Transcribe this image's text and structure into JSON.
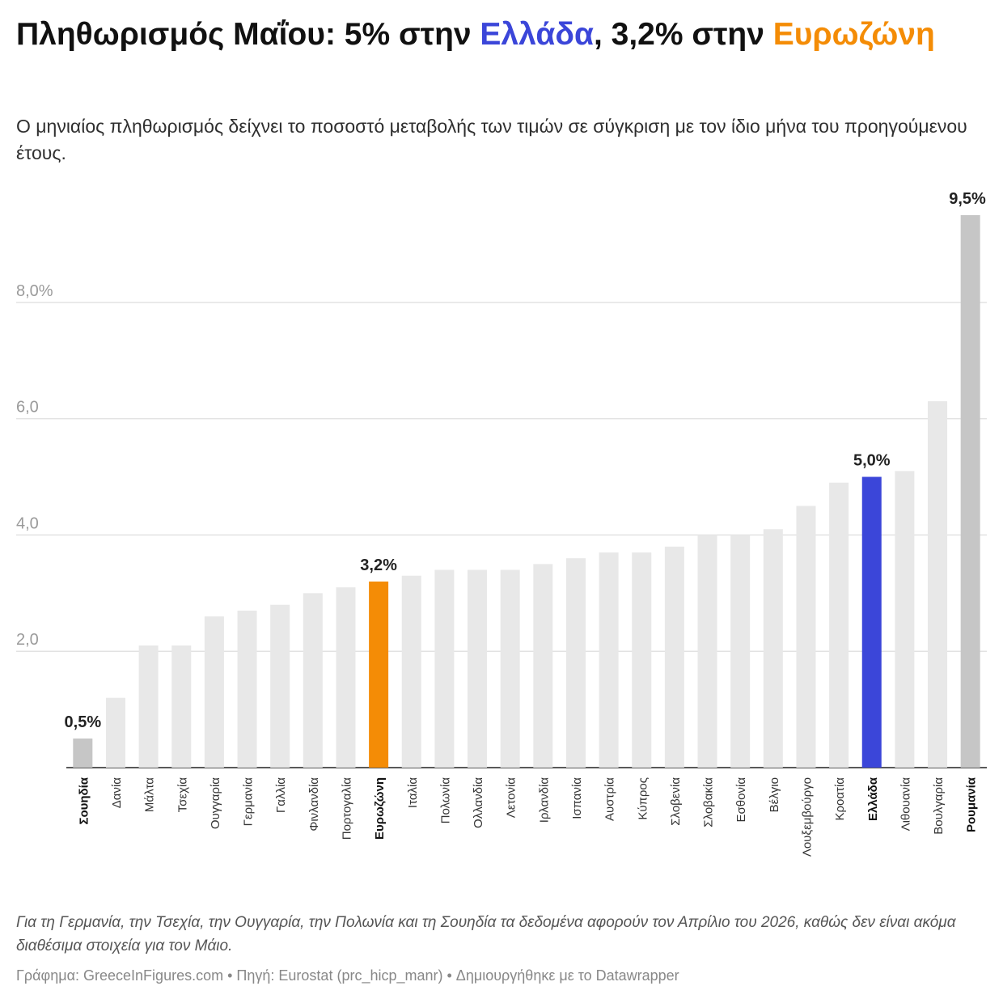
{
  "header": {
    "title_part1": "Πληθωρισμός Μαΐου: 5% στην ",
    "title_greece": "Ελλάδα",
    "title_part2": ", 3,2% στην ",
    "title_eurozone": "Ευρωζώνη",
    "subtitle": "Ο μηνιαίος πληθωρισμός δείχνει το ποσοστό μεταβολής των τιμών σε σύγκριση με τον ίδιο μήνα του προηγούμενου έτους."
  },
  "chart_data": {
    "type": "bar",
    "categories": [
      "Σουηδία",
      "Δανία",
      "Μάλτα",
      "Τσεχία",
      "Ουγγαρία",
      "Γερμανία",
      "Γαλλία",
      "Φινλανδία",
      "Πορτογαλία",
      "Ευρωζώνη",
      "Ιταλία",
      "Πολωνία",
      "Ολλανδία",
      "Λετονία",
      "Ιρλανδία",
      "Ισπανία",
      "Αυστρία",
      "Κύπρος",
      "Σλοβενία",
      "Σλοβακία",
      "Εσθονία",
      "Βέλγιο",
      "Λουξεμβούργο",
      "Κροατία",
      "Ελλάδα",
      "Λιθουανία",
      "Βουλγαρία",
      "Ρουμανία"
    ],
    "values": [
      0.5,
      1.2,
      2.1,
      2.1,
      2.6,
      2.7,
      2.8,
      3.0,
      3.1,
      3.2,
      3.3,
      3.4,
      3.4,
      3.4,
      3.5,
      3.6,
      3.7,
      3.7,
      3.8,
      4.0,
      4.0,
      4.1,
      4.5,
      4.9,
      5.0,
      5.1,
      6.3,
      9.5
    ],
    "ylim": [
      0,
      9.5
    ],
    "yticks": [
      {
        "value": 2,
        "label": "2,0"
      },
      {
        "value": 4,
        "label": "4,0"
      },
      {
        "value": 6,
        "label": "6,0"
      },
      {
        "value": 8,
        "label": "8,0%"
      }
    ],
    "grid": true,
    "colors": {
      "default": "#e8e8e8",
      "extreme": "#c6c6c6",
      "eurozone": "#f48c06",
      "greece": "#3b46d9"
    },
    "highlights": [
      {
        "category": "Σουηδία",
        "color_key": "extreme",
        "label": "0,5%",
        "bold": true
      },
      {
        "category": "Ευρωζώνη",
        "color_key": "eurozone",
        "label": "3,2%",
        "bold": true
      },
      {
        "category": "Ελλάδα",
        "color_key": "greece",
        "label": "5,0%",
        "bold": true
      },
      {
        "category": "Ρουμανία",
        "color_key": "extreme",
        "label": "9,5%",
        "bold": true
      }
    ]
  },
  "notes": {
    "footnote": "Για τη Γερμανία, την Τσεχία, την Ουγγαρία, την Πολωνία και τη Σουηδία τα δεδομένα αφορούν τον Απρίλιο του 2026, καθώς δεν είναι ακόμα διαθέσιμα στοιχεία για τον Μάιο.",
    "credits": "Γράφημα: GreeceInFigures.com • Πηγή: Eurostat (prc_hicp_manr) • Δημιουργήθηκε με το Datawrapper"
  }
}
